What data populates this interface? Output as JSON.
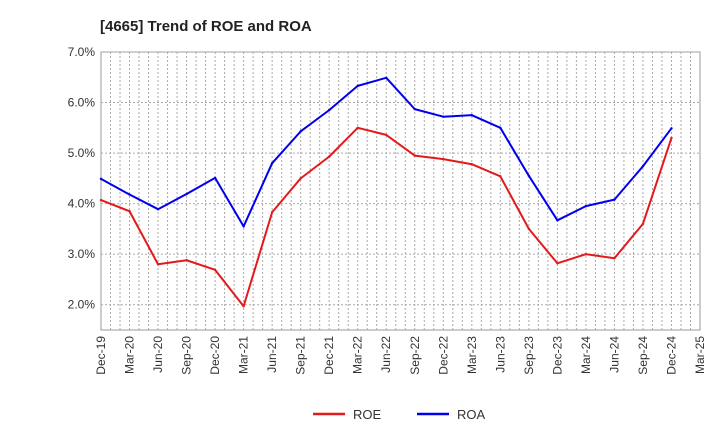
{
  "chart_data": {
    "type": "line",
    "title": "[4665]  Trend of ROE and ROA",
    "xlabel": "",
    "ylabel": "",
    "ylim": [
      1.5,
      7.0
    ],
    "yticks": [
      "2.0%",
      "3.0%",
      "4.0%",
      "5.0%",
      "6.0%",
      "7.0%"
    ],
    "ytick_values": [
      2.0,
      3.0,
      4.0,
      5.0,
      6.0,
      7.0
    ],
    "x": [
      "Dec-19",
      "Mar-20",
      "Jun-20",
      "Sep-20",
      "Dec-20",
      "Mar-21",
      "Jun-21",
      "Sep-21",
      "Dec-21",
      "Mar-22",
      "Jun-22",
      "Sep-22",
      "Dec-22",
      "Mar-23",
      "Jun-23",
      "Sep-23",
      "Dec-23",
      "Mar-24",
      "Jun-24",
      "Sep-24",
      "Dec-24",
      "Mar-25"
    ],
    "grid": true,
    "legend_position": "bottom",
    "series": [
      {
        "name": "ROE",
        "color": "#e31a1c",
        "values": [
          4.07,
          3.85,
          2.8,
          2.88,
          2.69,
          1.97,
          3.83,
          4.5,
          4.93,
          5.5,
          5.36,
          4.95,
          4.88,
          4.78,
          4.54,
          3.5,
          2.82,
          3.0,
          2.92,
          3.6,
          5.3,
          null
        ]
      },
      {
        "name": "ROA",
        "color": "#0000ee",
        "values": [
          4.49,
          4.18,
          3.89,
          4.19,
          4.51,
          3.55,
          4.8,
          5.43,
          5.85,
          6.33,
          6.49,
          5.87,
          5.72,
          5.75,
          5.5,
          4.55,
          3.67,
          3.95,
          4.08,
          4.74,
          5.49,
          null
        ]
      }
    ]
  }
}
